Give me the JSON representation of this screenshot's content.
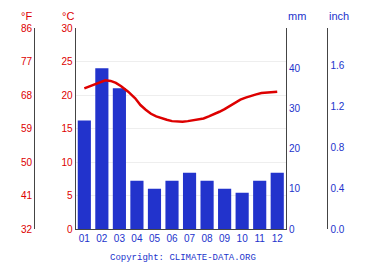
{
  "chart_data": {
    "type": "bar",
    "xlim": [
      0.5,
      12.5
    ],
    "xticks": [
      {
        "value": 1,
        "label": "01"
      },
      {
        "value": 2,
        "label": "02"
      },
      {
        "value": 3,
        "label": "03"
      },
      {
        "value": 4,
        "label": "04"
      },
      {
        "value": 5,
        "label": "05"
      },
      {
        "value": 6,
        "label": "06"
      },
      {
        "value": 7,
        "label": "07"
      },
      {
        "value": 8,
        "label": "08"
      },
      {
        "value": 9,
        "label": "09"
      },
      {
        "value": 10,
        "label": "10"
      },
      {
        "value": 11,
        "label": "11"
      },
      {
        "value": 12,
        "label": "12"
      }
    ],
    "ylim": [
      0,
      50
    ],
    "yticks": [
      0,
      10,
      20,
      30,
      40
    ],
    "ylabel": "mm",
    "y2lim": [
      0,
      30
    ],
    "y2ticks": [
      0,
      5,
      10,
      15,
      20,
      25,
      30
    ],
    "y2label": "°C",
    "y3lim": [
      32,
      86
    ],
    "y3ticks": [
      32,
      41,
      50,
      59,
      68,
      77,
      86
    ],
    "y3label": "°F",
    "y4lim": [
      0,
      1.968503937007874
    ],
    "y4ticks": [
      {
        "value": 0,
        "label": "0.0"
      },
      0.4,
      0.8,
      1.2,
      1.6
    ],
    "y4label": "inch",
    "grid": true,
    "series": [
      {
        "type": "bar",
        "color": "#2233cc",
        "x": [
          1,
          2,
          3,
          4,
          5,
          6,
          7,
          8,
          9,
          10,
          11,
          12
        ],
        "values": [
          27,
          40,
          35,
          12,
          10,
          12,
          14,
          12,
          10,
          9,
          12,
          14
        ]
      },
      {
        "type": "line",
        "color": "#dd0000",
        "axis": "y2",
        "x": [
          1.0,
          1.3,
          1.6,
          1.9,
          2.2,
          2.5,
          2.8,
          3.1,
          3.5,
          3.9,
          4.2,
          4.5,
          4.8,
          5.1,
          5.4,
          5.7,
          6.0,
          6.3,
          6.6,
          6.9,
          7.2,
          7.5,
          7.8,
          8.1,
          8.4,
          8.7,
          9.0,
          9.3,
          9.6,
          9.9,
          10.2,
          10.5,
          10.8,
          11.1,
          11.5,
          12.0
        ],
        "values": [
          21.0,
          21.3,
          21.7,
          22.0,
          22.2,
          22.1,
          21.8,
          21.3,
          20.5,
          19.5,
          18.5,
          17.8,
          17.2,
          16.8,
          16.5,
          16.3,
          16.1,
          16.0,
          16.0,
          16.1,
          16.2,
          16.3,
          16.5,
          16.8,
          17.1,
          17.5,
          17.9,
          18.4,
          18.9,
          19.3,
          19.6,
          19.9,
          20.1,
          20.3,
          20.4,
          20.5
        ]
      }
    ],
    "annotations": [
      {
        "text": "Copyright: CLIMATE-DATA.ORG"
      }
    ]
  }
}
